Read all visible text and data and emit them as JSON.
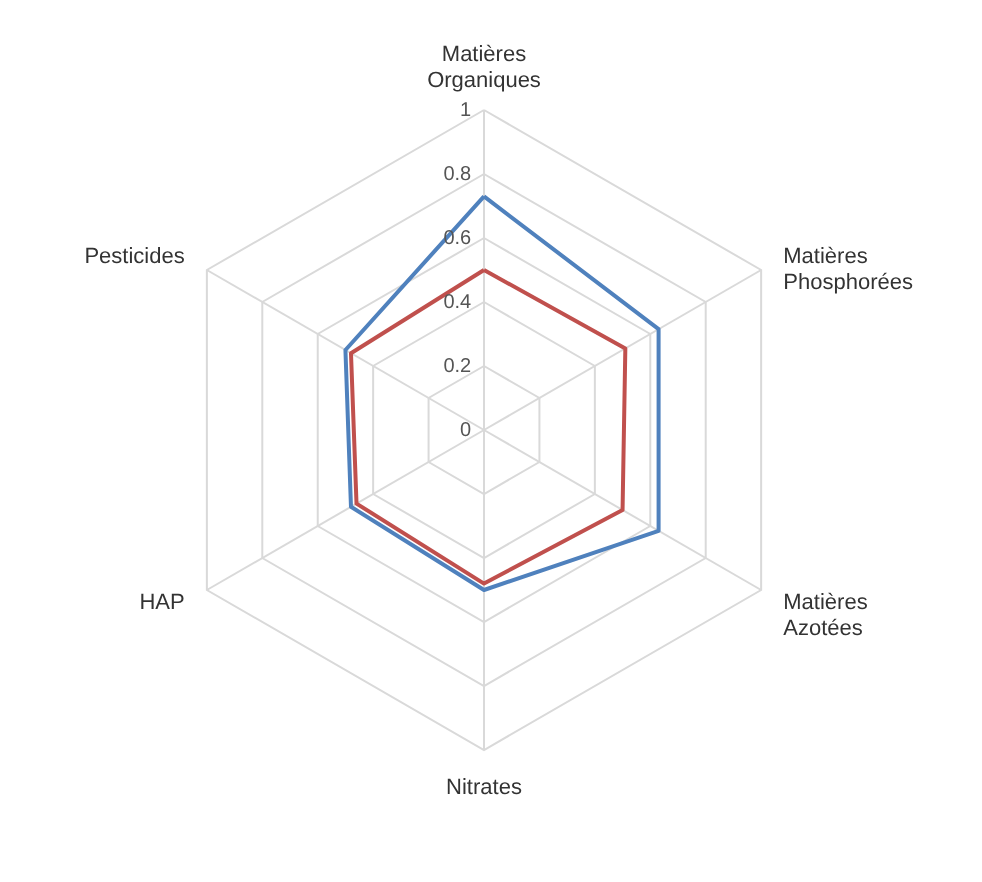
{
  "chart_data": {
    "type": "radar",
    "categories": [
      "Matières Organiques",
      "Matières Phosphorées",
      "Matières Azotées",
      "Nitrates",
      "HAP",
      "Pesticides"
    ],
    "series": [
      {
        "color": "#4f81bd",
        "values": [
          0.73,
          0.63,
          0.63,
          0.5,
          0.48,
          0.5
        ]
      },
      {
        "color": "#c0504d",
        "values": [
          0.5,
          0.51,
          0.5,
          0.48,
          0.46,
          0.48
        ]
      }
    ],
    "ylim": [
      0,
      1
    ],
    "yticks": [
      0,
      0.2,
      0.4,
      0.6,
      0.8,
      1
    ],
    "grid": true
  }
}
